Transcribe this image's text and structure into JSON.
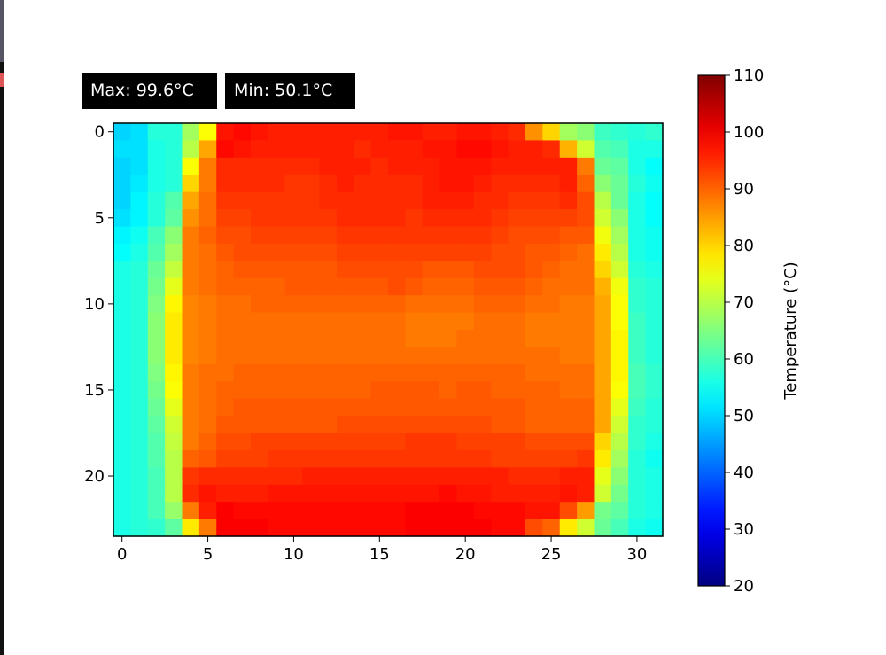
{
  "stats": {
    "max_label": "Max: 99.6°C",
    "min_label": "Min: 50.1°C"
  },
  "chart_data": {
    "type": "heatmap",
    "colormap": "jet",
    "colorbar": {
      "label": "Temperature (°C)",
      "range": [
        20,
        110
      ],
      "ticks": [
        "20",
        "30",
        "40",
        "50",
        "60",
        "70",
        "80",
        "90",
        "100",
        "110"
      ]
    },
    "x_ticks": [
      "0",
      "5",
      "10",
      "15",
      "20",
      "25",
      "30"
    ],
    "y_ticks": [
      "0",
      "5",
      "10",
      "15",
      "20"
    ],
    "xlim": [
      -0.5,
      31.5
    ],
    "ylim": [
      23.5,
      -0.5
    ],
    "values": [
      [
        50,
        51,
        57,
        57,
        68,
        76,
        97,
        98,
        97,
        96,
        96,
        96,
        96,
        96,
        96,
        96,
        97,
        97,
        96,
        96,
        97,
        97,
        96,
        95,
        86,
        80,
        68,
        66,
        59,
        58,
        57,
        58
      ],
      [
        51,
        51,
        56,
        57,
        70,
        84,
        98,
        97,
        96,
        96,
        96,
        96,
        96,
        96,
        95,
        96,
        96,
        96,
        97,
        97,
        98,
        98,
        97,
        96,
        96,
        95,
        83,
        72,
        61,
        60,
        56,
        56
      ],
      [
        50,
        51,
        56,
        57,
        76,
        88,
        95,
        95,
        95,
        95,
        95,
        95,
        96,
        96,
        96,
        95,
        96,
        96,
        96,
        97,
        97,
        97,
        96,
        96,
        96,
        96,
        96,
        88,
        63,
        62,
        56,
        54
      ],
      [
        50,
        52,
        56,
        57,
        80,
        88,
        95,
        95,
        95,
        95,
        94,
        94,
        95,
        96,
        95,
        95,
        95,
        95,
        96,
        97,
        97,
        96,
        95,
        95,
        95,
        95,
        96,
        90,
        66,
        63,
        57,
        55
      ],
      [
        50,
        53,
        57,
        61,
        84,
        89,
        94,
        94,
        94,
        94,
        94,
        94,
        95,
        95,
        95,
        95,
        95,
        95,
        96,
        96,
        96,
        95,
        95,
        94,
        94,
        94,
        95,
        92,
        70,
        63,
        56,
        54
      ],
      [
        51,
        53,
        57,
        62,
        86,
        89,
        93,
        93,
        94,
        94,
        94,
        94,
        94,
        95,
        95,
        95,
        95,
        94,
        95,
        95,
        95,
        95,
        94,
        93,
        93,
        93,
        93,
        92,
        72,
        66,
        56,
        54
      ],
      [
        53,
        55,
        60,
        66,
        88,
        90,
        92,
        92,
        93,
        93,
        93,
        93,
        93,
        94,
        94,
        94,
        94,
        94,
        94,
        94,
        94,
        94,
        93,
        92,
        92,
        92,
        91,
        91,
        75,
        68,
        56,
        55
      ],
      [
        54,
        56,
        61,
        68,
        88,
        89,
        91,
        92,
        92,
        92,
        92,
        92,
        92,
        93,
        93,
        93,
        93,
        93,
        93,
        93,
        93,
        93,
        92,
        92,
        91,
        91,
        90,
        89,
        78,
        70,
        56,
        55
      ],
      [
        56,
        57,
        63,
        71,
        88,
        89,
        90,
        91,
        91,
        91,
        91,
        91,
        91,
        92,
        92,
        92,
        92,
        92,
        91,
        91,
        91,
        92,
        92,
        92,
        91,
        90,
        89,
        89,
        80,
        72,
        57,
        56
      ],
      [
        56,
        57,
        64,
        74,
        88,
        89,
        90,
        90,
        90,
        90,
        91,
        91,
        91,
        91,
        91,
        91,
        92,
        91,
        90,
        90,
        90,
        91,
        91,
        91,
        90,
        89,
        89,
        89,
        83,
        75,
        58,
        57
      ],
      [
        56,
        57,
        65,
        77,
        87,
        88,
        89,
        89,
        90,
        90,
        90,
        90,
        90,
        90,
        90,
        90,
        90,
        89,
        89,
        89,
        89,
        90,
        90,
        90,
        89,
        89,
        88,
        88,
        84,
        76,
        58,
        57
      ],
      [
        56,
        57,
        66,
        78,
        87,
        88,
        89,
        89,
        89,
        89,
        89,
        89,
        89,
        89,
        89,
        89,
        89,
        88,
        88,
        88,
        88,
        89,
        89,
        89,
        88,
        88,
        88,
        88,
        84,
        76,
        59,
        57
      ],
      [
        56,
        57,
        66,
        78,
        87,
        88,
        89,
        89,
        89,
        89,
        89,
        89,
        89,
        89,
        89,
        89,
        89,
        88,
        88,
        88,
        89,
        89,
        89,
        89,
        88,
        88,
        88,
        88,
        84,
        77,
        59,
        57
      ],
      [
        56,
        57,
        66,
        78,
        87,
        88,
        89,
        89,
        89,
        89,
        89,
        89,
        89,
        89,
        89,
        89,
        89,
        89,
        89,
        89,
        89,
        89,
        89,
        89,
        89,
        89,
        88,
        88,
        84,
        77,
        59,
        57
      ],
      [
        56,
        57,
        65,
        77,
        88,
        89,
        89,
        90,
        90,
        90,
        90,
        90,
        90,
        90,
        90,
        90,
        90,
        90,
        90,
        90,
        90,
        90,
        90,
        90,
        89,
        89,
        89,
        89,
        84,
        77,
        60,
        58
      ],
      [
        56,
        57,
        64,
        76,
        88,
        89,
        90,
        90,
        90,
        90,
        90,
        90,
        90,
        90,
        90,
        91,
        91,
        91,
        91,
        90,
        91,
        91,
        90,
        90,
        90,
        90,
        89,
        89,
        84,
        76,
        60,
        58
      ],
      [
        56,
        57,
        63,
        74,
        88,
        89,
        90,
        91,
        91,
        91,
        91,
        91,
        91,
        91,
        91,
        91,
        91,
        91,
        91,
        91,
        91,
        91,
        91,
        91,
        90,
        90,
        90,
        90,
        84,
        74,
        59,
        57
      ],
      [
        56,
        57,
        62,
        72,
        88,
        89,
        91,
        91,
        91,
        91,
        91,
        91,
        91,
        92,
        92,
        92,
        92,
        92,
        92,
        92,
        92,
        92,
        91,
        91,
        90,
        90,
        90,
        90,
        84,
        72,
        58,
        57
      ],
      [
        56,
        57,
        61,
        71,
        88,
        90,
        92,
        92,
        93,
        93,
        93,
        93,
        93,
        93,
        93,
        93,
        93,
        94,
        94,
        94,
        93,
        93,
        93,
        93,
        92,
        92,
        92,
        92,
        80,
        70,
        58,
        56
      ],
      [
        56,
        57,
        61,
        70,
        90,
        91,
        93,
        93,
        93,
        94,
        94,
        94,
        94,
        94,
        94,
        94,
        94,
        94,
        94,
        94,
        94,
        94,
        93,
        93,
        93,
        93,
        93,
        94,
        78,
        68,
        57,
        55
      ],
      [
        56,
        57,
        60,
        70,
        94,
        95,
        95,
        95,
        95,
        95,
        95,
        96,
        96,
        96,
        96,
        96,
        96,
        96,
        96,
        96,
        96,
        96,
        96,
        95,
        95,
        95,
        96,
        96,
        74,
        66,
        57,
        56
      ],
      [
        56,
        57,
        60,
        70,
        95,
        97,
        96,
        96,
        96,
        97,
        97,
        97,
        97,
        97,
        97,
        97,
        97,
        97,
        97,
        98,
        97,
        97,
        96,
        96,
        96,
        96,
        97,
        96,
        72,
        64,
        57,
        56
      ],
      [
        56,
        57,
        60,
        67,
        88,
        96,
        99,
        98,
        98,
        98,
        98,
        98,
        98,
        98,
        98,
        98,
        98,
        99,
        99,
        99,
        99,
        98,
        98,
        98,
        97,
        97,
        92,
        85,
        64,
        62,
        57,
        56
      ],
      [
        56,
        57,
        58,
        62,
        78,
        88,
        99,
        99,
        99,
        98,
        98,
        98,
        98,
        98,
        98,
        98,
        98,
        99,
        99,
        99,
        99,
        99,
        98,
        98,
        92,
        90,
        78,
        72,
        63,
        60,
        56,
        55
      ]
    ]
  }
}
